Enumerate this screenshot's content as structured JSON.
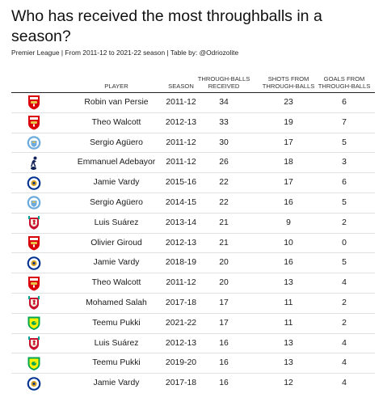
{
  "title": "Who has received the most throughballs in a season?",
  "subtitle": "Premier League | From 2011-12 to 2021-22 season | Table by: @Odriozolite",
  "columns": {
    "player": "PLAYER",
    "season": "SEASON",
    "throughballs": "THROUGH-BALLS RECEIVED",
    "shots": "SHOTS FROM THROUGH-BALLS",
    "goals": "GOALS FROM THROUGH-BALLS"
  },
  "club_colors": {
    "arsenal": "#db0007",
    "man-city": "#6cabdd",
    "tottenham": "#132257",
    "leicester": "#003090",
    "liverpool": "#c8102e",
    "norwich": "#00a650"
  },
  "chart_data": {
    "type": "table",
    "title": "Who has received the most throughballs in a season?",
    "subtitle": "Premier League | From 2011-12 to 2021-22 season | Table by: @Odriozolite",
    "rows": [
      {
        "club_icon": "arsenal-crest-icon",
        "player": "Robin van Persie",
        "season": "2011-12",
        "throughballs": "34",
        "shots": "23",
        "goals": "6"
      },
      {
        "club_icon": "arsenal-crest-icon",
        "player": "Theo Walcott",
        "season": "2012-13",
        "throughballs": "33",
        "shots": "19",
        "goals": "7"
      },
      {
        "club_icon": "man-city-crest-icon",
        "player": "Sergio Agüero",
        "season": "2011-12",
        "throughballs": "30",
        "shots": "17",
        "goals": "5"
      },
      {
        "club_icon": "tottenham-crest-icon",
        "player": "Emmanuel Adebayor",
        "season": "2011-12",
        "throughballs": "26",
        "shots": "18",
        "goals": "3"
      },
      {
        "club_icon": "leicester-crest-icon",
        "player": "Jamie Vardy",
        "season": "2015-16",
        "throughballs": "22",
        "shots": "17",
        "goals": "6"
      },
      {
        "club_icon": "man-city-crest-icon",
        "player": "Sergio Agüero",
        "season": "2014-15",
        "throughballs": "22",
        "shots": "16",
        "goals": "5"
      },
      {
        "club_icon": "liverpool-crest-icon",
        "player": "Luis Suárez",
        "season": "2013-14",
        "throughballs": "21",
        "shots": "9",
        "goals": "2"
      },
      {
        "club_icon": "arsenal-crest-icon",
        "player": "Olivier Giroud",
        "season": "2012-13",
        "throughballs": "21",
        "shots": "10",
        "goals": "0"
      },
      {
        "club_icon": "leicester-crest-icon",
        "player": "Jamie Vardy",
        "season": "2018-19",
        "throughballs": "20",
        "shots": "16",
        "goals": "5"
      },
      {
        "club_icon": "arsenal-crest-icon",
        "player": "Theo Walcott",
        "season": "2011-12",
        "throughballs": "20",
        "shots": "13",
        "goals": "4"
      },
      {
        "club_icon": "liverpool-crest-icon",
        "player": "Mohamed Salah",
        "season": "2017-18",
        "throughballs": "17",
        "shots": "11",
        "goals": "2"
      },
      {
        "club_icon": "norwich-crest-icon",
        "player": "Teemu Pukki",
        "season": "2021-22",
        "throughballs": "17",
        "shots": "11",
        "goals": "2"
      },
      {
        "club_icon": "liverpool-crest-icon",
        "player": "Luis Suárez",
        "season": "2012-13",
        "throughballs": "16",
        "shots": "13",
        "goals": "4"
      },
      {
        "club_icon": "norwich-crest-icon",
        "player": "Teemu Pukki",
        "season": "2019-20",
        "throughballs": "16",
        "shots": "13",
        "goals": "4"
      },
      {
        "club_icon": "leicester-crest-icon",
        "player": "Jamie Vardy",
        "season": "2017-18",
        "throughballs": "16",
        "shots": "12",
        "goals": "4"
      }
    ]
  }
}
